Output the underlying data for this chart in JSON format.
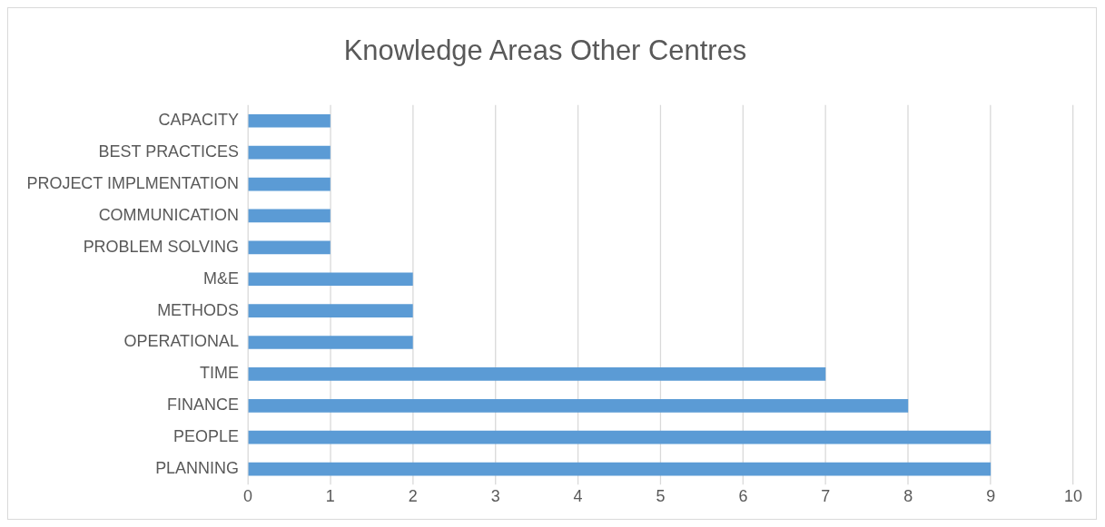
{
  "chart_data": {
    "type": "bar",
    "orientation": "horizontal",
    "title": "Knowledge Areas Other Centres",
    "categories": [
      "CAPACITY",
      "BEST PRACTICES",
      "PROJECT IMPLMENTATION",
      "COMMUNICATION",
      "PROBLEM SOLVING",
      "M&E",
      "METHODS",
      "OPERATIONAL",
      "TIME",
      "FINANCE",
      "PEOPLE",
      "PLANNING"
    ],
    "values": [
      1,
      1,
      1,
      1,
      1,
      2,
      2,
      2,
      7,
      8,
      9,
      9
    ],
    "color": "#5b9bd5",
    "xlim": [
      0,
      10
    ],
    "xticks": [
      0,
      1,
      2,
      3,
      4,
      5,
      6,
      7,
      8,
      9,
      10
    ],
    "grid": "x",
    "legend": false
  }
}
